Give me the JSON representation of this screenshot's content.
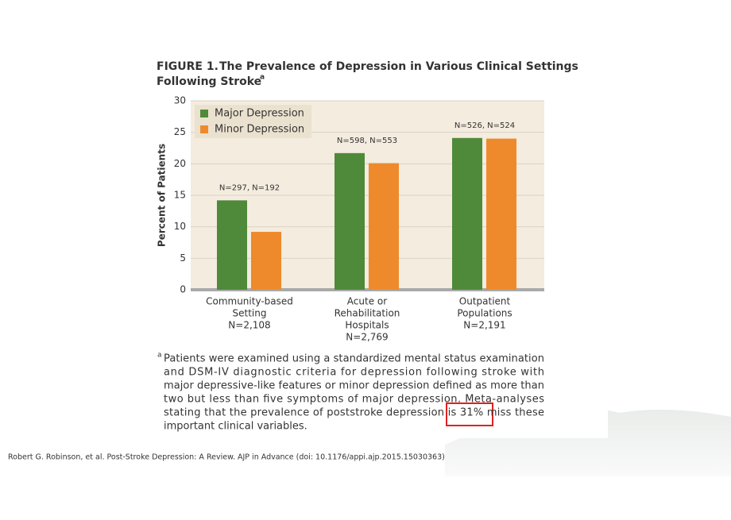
{
  "chart_data": {
    "type": "bar",
    "figure_label": "FIGURE 1.",
    "title": [
      "The Prevalence of Depression in Various Clinical Settings",
      "Following Stroke"
    ],
    "title_note": "a",
    "ylabel": "Percent of Patients",
    "categories": [
      [
        "Community-based",
        "Setting",
        "N=2,108"
      ],
      [
        "Acute or",
        "Rehabilitation",
        "Hospitals",
        "N=2,769"
      ],
      [
        "Outpatient",
        "Populations",
        "N=2,191"
      ]
    ],
    "annotations": [
      "N=297, N=192",
      "N=598, N=553",
      "N=526, N=524"
    ],
    "series": [
      {
        "name": "Major Depression",
        "color": "#4f8a3a",
        "values": [
          14.2,
          21.7,
          24.1
        ]
      },
      {
        "name": "Minor Depression",
        "color": "#ee8a2c",
        "values": [
          9.2,
          20.1,
          24.0
        ]
      }
    ],
    "ylim": [
      0,
      30
    ],
    "yticks": [
      0,
      5,
      10,
      15,
      20,
      25,
      30
    ],
    "grid": true,
    "legend": "upper-left"
  },
  "footnote": {
    "marker": "a",
    "lines": [
      "Patients were examined using a standardized mental status examination",
      "and DSM-IV diagnostic criteria for depression following stroke with",
      "major depressive-like features or minor depression defined as more than",
      "two but less than five symptoms of major depression. Meta-analyses",
      "stating that the prevalence of poststroke depression is 31% miss these",
      "important clinical variables."
    ]
  },
  "citation": "Robert G. Robinson, et al. Post-Stroke Depression: A Review. AJP in Advance (doi: 10.1176/appi.ajp.2015.15030363)"
}
